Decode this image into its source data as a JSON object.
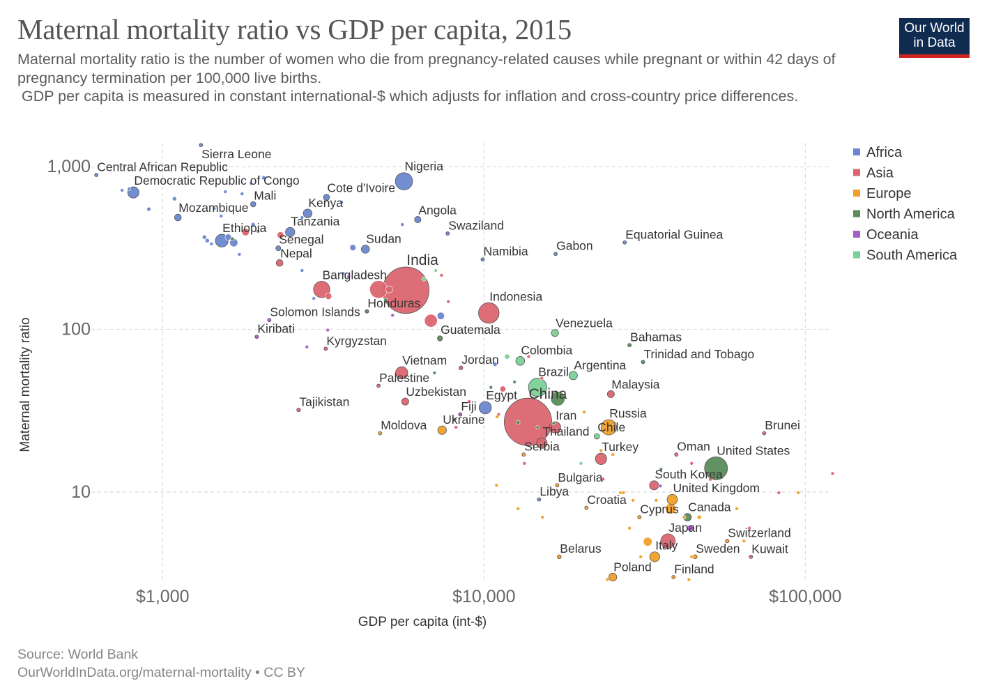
{
  "header": {
    "title": "Maternal mortality ratio vs GDP per capita, 2015",
    "subtitle": "Maternal mortality ratio is the number of women who die from pregnancy-related causes while pregnant or within 42 days of pregnancy termination per 100,000 live births.\n GDP per capita is measured in constant international-$ which adjusts for inflation and cross-country price differences.",
    "logo_line1": "Our World",
    "logo_line2": "in Data"
  },
  "footer": {
    "source": "Source: World Bank",
    "link": "OurWorldInData.org/maternal-mortality • CC BY"
  },
  "chart_data": {
    "type": "scatter",
    "title": "Maternal mortality ratio vs GDP per capita, 2015",
    "xlabel": "GDP per capita (int-$)",
    "ylabel": "Maternal mortality ratio",
    "xscale": "log",
    "yscale": "log",
    "xlim": [
      600,
      125000
    ],
    "ylim": [
      2.8,
      1400
    ],
    "xticks": [
      {
        "value": 1000,
        "label": "$1,000"
      },
      {
        "value": 10000,
        "label": "$10,000"
      },
      {
        "value": 100000,
        "label": "$100,000"
      }
    ],
    "yticks": [
      {
        "value": 10,
        "label": "10"
      },
      {
        "value": 100,
        "label": "100"
      },
      {
        "value": 1000,
        "label": "1,000"
      }
    ],
    "grid": true,
    "size_encoding": "population (millions)",
    "legend_position": "right",
    "legend": [
      {
        "name": "Africa",
        "color": "#6b87cf"
      },
      {
        "name": "Asia",
        "color": "#db6670"
      },
      {
        "name": "Europe",
        "color": "#f0a02a"
      },
      {
        "name": "North America",
        "color": "#5b8c5a"
      },
      {
        "name": "Oceania",
        "color": "#a65dc6"
      },
      {
        "name": "South America",
        "color": "#7ad196"
      }
    ],
    "points": [
      {
        "c": "Sierra Leone",
        "x": 1316,
        "y": 1358,
        "r": "Africa",
        "p": 7
      },
      {
        "c": "Central African Republic",
        "x": 622,
        "y": 889,
        "r": "Africa",
        "p": 4.5
      },
      {
        "c": "Democratic Republic of Congo",
        "x": 811,
        "y": 694,
        "r": "Africa",
        "p": 77
      },
      {
        "c": "Mali",
        "x": 1914,
        "y": 587,
        "r": "Africa",
        "p": 17
      },
      {
        "c": "Mozambique",
        "x": 1116,
        "y": 487,
        "r": "Africa",
        "p": 28
      },
      {
        "c": "Ethiopia",
        "x": 1528,
        "y": 351,
        "r": "Africa",
        "p": 100
      },
      {
        "c": "Kenya",
        "x": 2827,
        "y": 516,
        "r": "Africa",
        "p": 47
      },
      {
        "c": "Tanzania",
        "x": 2494,
        "y": 396,
        "r": "Africa",
        "p": 53
      },
      {
        "c": "Senegal",
        "x": 2291,
        "y": 315,
        "r": "Africa",
        "p": 15
      },
      {
        "c": "Nepal",
        "x": 2312,
        "y": 256,
        "r": "Asia",
        "p": 28
      },
      {
        "c": "Cote d'Ivoire",
        "x": 3236,
        "y": 648,
        "r": "Africa",
        "p": 23
      },
      {
        "c": "Nigeria",
        "x": 5636,
        "y": 813,
        "r": "Africa",
        "p": 181
      },
      {
        "c": "Angola",
        "x": 6223,
        "y": 473,
        "r": "Africa",
        "p": 25
      },
      {
        "c": "Sudan",
        "x": 4276,
        "y": 311,
        "r": "Africa",
        "p": 40
      },
      {
        "c": "Swaziland",
        "x": 7709,
        "y": 388,
        "r": "Africa",
        "p": 1.3
      },
      {
        "c": "Namibia",
        "x": 9908,
        "y": 269,
        "r": "Africa",
        "p": 2.4
      },
      {
        "c": "Gabon",
        "x": 16710,
        "y": 291,
        "r": "Africa",
        "p": 1.9
      },
      {
        "c": "Equatorial Guinea",
        "x": 27420,
        "y": 342,
        "r": "Africa",
        "p": 1.2
      },
      {
        "c": "India",
        "x": 5715,
        "y": 174,
        "r": "Asia",
        "p": 1311
      },
      {
        "c": "Bangladesh",
        "x": 3126,
        "y": 176,
        "r": "Asia",
        "p": 161
      },
      {
        "c": "Honduras",
        "x": 4323,
        "y": 129,
        "r": "North America",
        "p": 8
      },
      {
        "c": "Solomon Islands",
        "x": 2148,
        "y": 114,
        "r": "Oceania",
        "p": 0.6
      },
      {
        "c": "Kiribati",
        "x": 1963,
        "y": 90,
        "r": "Oceania",
        "p": 0.1
      },
      {
        "c": "Kyrgyzstan",
        "x": 3219,
        "y": 76,
        "r": "Asia",
        "p": 6
      },
      {
        "c": "Indonesia",
        "x": 10355,
        "y": 126,
        "r": "Asia",
        "p": 258
      },
      {
        "c": "Guatemala",
        "x": 7296,
        "y": 88,
        "r": "North America",
        "p": 16
      },
      {
        "c": "Venezuela",
        "x": 16634,
        "y": 95,
        "r": "South America",
        "p": 31
      },
      {
        "c": "Bahamas",
        "x": 28380,
        "y": 80,
        "r": "North America",
        "p": 0.4
      },
      {
        "c": "Trinidad and Tobago",
        "x": 31260,
        "y": 63,
        "r": "North America",
        "p": 1.4
      },
      {
        "c": "Colombia",
        "x": 12970,
        "y": 64,
        "r": "South America",
        "p": 48
      },
      {
        "c": "Jordan",
        "x": 8477,
        "y": 58,
        "r": "Asia",
        "p": 9
      },
      {
        "c": "Vietnam",
        "x": 5546,
        "y": 54,
        "r": "Asia",
        "p": 92
      },
      {
        "c": "Palestine",
        "x": 4699,
        "y": 45,
        "r": "Asia",
        "p": 4.7
      },
      {
        "c": "Argentina",
        "x": 18960,
        "y": 52,
        "r": "South America",
        "p": 43
      },
      {
        "c": "Brazil",
        "x": 14690,
        "y": 44,
        "r": "South America",
        "p": 206
      },
      {
        "c": "Malaysia",
        "x": 24830,
        "y": 40,
        "r": "Asia",
        "p": 30
      },
      {
        "c": "Uzbekistan",
        "x": 5689,
        "y": 36,
        "r": "Asia",
        "p": 31
      },
      {
        "c": "Egypt",
        "x": 10095,
        "y": 33,
        "r": "Africa",
        "p": 92
      },
      {
        "c": "China",
        "x": 13710,
        "y": 27,
        "r": "Asia",
        "p": 1371
      },
      {
        "c": "Tajikistan",
        "x": 2650,
        "y": 32,
        "r": "Asia",
        "p": 8.5
      },
      {
        "c": "Fiji",
        "x": 8439,
        "y": 30,
        "r": "Oceania",
        "p": 0.9
      },
      {
        "c": "Moldova",
        "x": 4750,
        "y": 23,
        "r": "Europe",
        "p": 3.5
      },
      {
        "c": "Ukraine",
        "x": 7410,
        "y": 24,
        "r": "Europe",
        "p": 45
      },
      {
        "c": "Iran",
        "x": 16640,
        "y": 25,
        "r": "Asia",
        "p": 79
      },
      {
        "c": "Thailand",
        "x": 15140,
        "y": 20,
        "r": "Asia",
        "p": 68
      },
      {
        "c": "Russia",
        "x": 24450,
        "y": 25,
        "r": "Europe",
        "p": 144
      },
      {
        "c": "Chile",
        "x": 22460,
        "y": 22,
        "r": "South America",
        "p": 18
      },
      {
        "c": "Serbia",
        "x": 13290,
        "y": 17,
        "r": "Europe",
        "p": 7
      },
      {
        "c": "Turkey",
        "x": 23140,
        "y": 16,
        "r": "Asia",
        "p": 78
      },
      {
        "c": "Brunei",
        "x": 74460,
        "y": 23,
        "r": "Asia",
        "p": 0.4
      },
      {
        "c": "Oman",
        "x": 39680,
        "y": 17,
        "r": "Asia",
        "p": 4.5
      },
      {
        "c": "United States",
        "x": 52740,
        "y": 14,
        "r": "North America",
        "p": 321
      },
      {
        "c": "South Korea",
        "x": 33840,
        "y": 11,
        "r": "Asia",
        "p": 51
      },
      {
        "c": "Bulgaria",
        "x": 16900,
        "y": 11,
        "r": "Europe",
        "p": 7
      },
      {
        "c": "United Kingdom",
        "x": 38550,
        "y": 9,
        "r": "Europe",
        "p": 65
      },
      {
        "c": "Libya",
        "x": 14840,
        "y": 9,
        "r": "Africa",
        "p": 6
      },
      {
        "c": "Croatia",
        "x": 20840,
        "y": 8,
        "r": "Europe",
        "p": 4.2
      },
      {
        "c": "Cyprus",
        "x": 30460,
        "y": 7,
        "r": "Europe",
        "p": 1.2
      },
      {
        "c": "Canada",
        "x": 42980,
        "y": 7,
        "r": "North America",
        "p": 36
      },
      {
        "c": "Japan",
        "x": 37390,
        "y": 5,
        "r": "Asia",
        "p": 127
      },
      {
        "c": "Switzerland",
        "x": 57150,
        "y": 5,
        "r": "Europe",
        "p": 8.3
      },
      {
        "c": "Belarus",
        "x": 17150,
        "y": 4,
        "r": "Europe",
        "p": 9.5
      },
      {
        "c": "Italy",
        "x": 33990,
        "y": 4,
        "r": "Europe",
        "p": 60
      },
      {
        "c": "Sweden",
        "x": 45420,
        "y": 4,
        "r": "Europe",
        "p": 9.8
      },
      {
        "c": "Kuwait",
        "x": 67720,
        "y": 4,
        "r": "Asia",
        "p": 3.9
      },
      {
        "c": "Poland",
        "x": 25180,
        "y": 3,
        "r": "Europe",
        "p": 38
      },
      {
        "c": "Finland",
        "x": 38900,
        "y": 3,
        "r": "Europe",
        "p": 5.5
      },
      {
        "x": 748,
        "y": 715,
        "r": "Africa",
        "p": 5
      },
      {
        "x": 787,
        "y": 730,
        "r": "Africa",
        "p": 3
      },
      {
        "x": 906,
        "y": 548,
        "r": "Africa",
        "p": 10
      },
      {
        "x": 1089,
        "y": 635,
        "r": "Africa",
        "p": 11
      },
      {
        "x": 1567,
        "y": 701,
        "r": "Africa",
        "p": 2
      },
      {
        "x": 1767,
        "y": 681,
        "r": "Africa",
        "p": 8
      },
      {
        "x": 2064,
        "y": 854,
        "r": "Africa",
        "p": 10
      },
      {
        "x": 1884,
        "y": 789,
        "r": "Africa",
        "p": 7
      },
      {
        "x": 1521,
        "y": 497,
        "r": "Africa",
        "p": 2
      },
      {
        "x": 1448,
        "y": 553,
        "r": "Africa",
        "p": 1.8
      },
      {
        "x": 1914,
        "y": 441,
        "r": "Africa",
        "p": 10
      },
      {
        "x": 1982,
        "y": 400,
        "r": "Africa",
        "p": 3
      },
      {
        "x": 1349,
        "y": 369,
        "r": "Africa",
        "p": 11
      },
      {
        "x": 1377,
        "y": 351,
        "r": "Africa",
        "p": 11
      },
      {
        "x": 1419,
        "y": 335,
        "r": "Africa",
        "p": 3
      },
      {
        "x": 1600,
        "y": 369,
        "r": "Africa",
        "p": 24
      },
      {
        "x": 1665,
        "y": 341,
        "r": "Africa",
        "p": 40
      },
      {
        "x": 1733,
        "y": 289,
        "r": "Africa",
        "p": 7
      },
      {
        "x": 1648,
        "y": 359,
        "r": "North America",
        "p": 10
      },
      {
        "x": 1811,
        "y": 396,
        "r": "Asia",
        "p": 33
      },
      {
        "x": 2327,
        "y": 380,
        "r": "Asia",
        "p": 27
      },
      {
        "x": 2716,
        "y": 487,
        "r": "Africa",
        "p": 2
      },
      {
        "x": 3606,
        "y": 605,
        "r": "Africa",
        "p": 7
      },
      {
        "x": 2716,
        "y": 230,
        "r": "Africa",
        "p": 2
      },
      {
        "x": 2955,
        "y": 155,
        "r": "Africa",
        "p": 1.8
      },
      {
        "x": 3648,
        "y": 221,
        "r": "Africa",
        "p": 7
      },
      {
        "x": 3793,
        "y": 211,
        "r": "Oceania",
        "p": 8
      },
      {
        "x": 3908,
        "y": 318,
        "r": "Africa",
        "p": 23
      },
      {
        "x": 5571,
        "y": 441,
        "r": "Africa",
        "p": 4.5
      },
      {
        "x": 3281,
        "y": 160,
        "r": "Asia",
        "p": 27
      },
      {
        "x": 4699,
        "y": 176,
        "r": "Asia",
        "p": 189
      },
      {
        "x": 5070,
        "y": 176,
        "r": "Asia",
        "p": 30
      },
      {
        "x": 6505,
        "y": 204,
        "r": "South America",
        "p": 11
      },
      {
        "x": 7079,
        "y": 230,
        "r": "South America",
        "p": 0.8
      },
      {
        "x": 7379,
        "y": 215,
        "r": "Asia",
        "p": 7
      },
      {
        "x": 7746,
        "y": 148,
        "r": "Asia",
        "p": 3
      },
      {
        "x": 6839,
        "y": 113,
        "r": "Asia",
        "p": 100
      },
      {
        "x": 7341,
        "y": 121,
        "r": "Africa",
        "p": 33
      },
      {
        "x": 4943,
        "y": 152,
        "r": "North America",
        "p": 6
      },
      {
        "x": 5196,
        "y": 122,
        "r": "Oceania",
        "p": 0.3
      },
      {
        "x": 3266,
        "y": 99,
        "r": "Oceania",
        "p": 0.2
      },
      {
        "x": 2812,
        "y": 78,
        "r": "Oceania",
        "p": 0.1
      },
      {
        "x": 11800,
        "y": 68,
        "r": "South America",
        "p": 16
      },
      {
        "x": 13770,
        "y": 68,
        "r": "Asia",
        "p": 6
      },
      {
        "x": 10830,
        "y": 61,
        "r": "Africa",
        "p": 11
      },
      {
        "x": 7015,
        "y": 54,
        "r": "North America",
        "p": 6
      },
      {
        "x": 15140,
        "y": 50,
        "r": "Asia",
        "p": 3
      },
      {
        "x": 10510,
        "y": 44,
        "r": "North America",
        "p": 0.8
      },
      {
        "x": 11450,
        "y": 43,
        "r": "Asia",
        "p": 21
      },
      {
        "x": 12450,
        "y": 47.5,
        "r": "North America",
        "p": 4
      },
      {
        "x": 8995,
        "y": 36,
        "r": "Asia",
        "p": 7
      },
      {
        "x": 11110,
        "y": 30,
        "r": "Asia",
        "p": 3
      },
      {
        "x": 10990,
        "y": 29,
        "r": "Europe",
        "p": 2.9
      },
      {
        "x": 8185,
        "y": 25,
        "r": "Asia",
        "p": 3
      },
      {
        "x": 8110,
        "y": 28,
        "r": "North America",
        "p": 2.7
      },
      {
        "x": 16980,
        "y": 37.5,
        "r": "North America",
        "p": 127
      },
      {
        "x": 20510,
        "y": 31,
        "r": "Europe",
        "p": 2.9
      },
      {
        "x": 16480,
        "y": 26.5,
        "r": "North America",
        "p": 4.8
      },
      {
        "x": 12770,
        "y": 26.8,
        "r": "North America",
        "p": 10
      },
      {
        "x": 14690,
        "y": 25,
        "r": "North America",
        "p": 3
      },
      {
        "x": 23140,
        "y": 18,
        "r": "Europe",
        "p": 3
      },
      {
        "x": 25180,
        "y": 17,
        "r": "Europe",
        "p": 2
      },
      {
        "x": 20040,
        "y": 15,
        "r": "South America",
        "p": 3.4
      },
      {
        "x": 13360,
        "y": 15,
        "r": "Asia",
        "p": 3
      },
      {
        "x": 23490,
        "y": 12,
        "r": "Asia",
        "p": 4
      },
      {
        "x": 10940,
        "y": 11,
        "r": "Europe",
        "p": 2
      },
      {
        "x": 26610,
        "y": 9.9,
        "r": "Europe",
        "p": 2
      },
      {
        "x": 27170,
        "y": 9.9,
        "r": "Europe",
        "p": 2
      },
      {
        "x": 29110,
        "y": 8.9,
        "r": "Europe",
        "p": 1.3
      },
      {
        "x": 34350,
        "y": 8.9,
        "r": "Europe",
        "p": 0.4
      },
      {
        "x": 12770,
        "y": 7.9,
        "r": "Europe",
        "p": 2
      },
      {
        "x": 15210,
        "y": 7.0,
        "r": "Europe",
        "p": 2.9
      },
      {
        "x": 35560,
        "y": 13.8,
        "r": "North America",
        "p": 0.3
      },
      {
        "x": 35400,
        "y": 10.9,
        "r": "Oceania",
        "p": 4.6
      },
      {
        "x": 44300,
        "y": 15,
        "r": "Asia",
        "p": 2
      },
      {
        "x": 50700,
        "y": 12,
        "r": "Asia",
        "p": 9
      },
      {
        "x": 82740,
        "y": 9.9,
        "r": "Asia",
        "p": 2
      },
      {
        "x": 95100,
        "y": 9.9,
        "r": "Europe",
        "p": 0.6
      },
      {
        "x": 121600,
        "y": 13,
        "r": "Asia",
        "p": 2.2
      },
      {
        "x": 61240,
        "y": 7.9,
        "r": "Europe",
        "p": 5
      },
      {
        "x": 38110,
        "y": 7.9,
        "r": "Europe",
        "p": 66
      },
      {
        "x": 41970,
        "y": 7.0,
        "r": "Europe",
        "p": 2
      },
      {
        "x": 46770,
        "y": 7.0,
        "r": "Europe",
        "p": 11
      },
      {
        "x": 28380,
        "y": 6.0,
        "r": "Europe",
        "p": 2
      },
      {
        "x": 43850,
        "y": 6.0,
        "r": "Oceania",
        "p": 24
      },
      {
        "x": 66990,
        "y": 6.0,
        "r": "Asia",
        "p": 2
      },
      {
        "x": 32330,
        "y": 4.95,
        "r": "Europe",
        "p": 46
      },
      {
        "x": 64420,
        "y": 5.0,
        "r": "Europe",
        "p": 2
      },
      {
        "x": 30760,
        "y": 4.0,
        "r": "Europe",
        "p": 2
      },
      {
        "x": 44300,
        "y": 4.0,
        "r": "Europe",
        "p": 5
      },
      {
        "x": 24210,
        "y": 2.9,
        "r": "Europe",
        "p": 2
      },
      {
        "x": 43450,
        "y": 2.9,
        "r": "Europe",
        "p": 0.5
      }
    ]
  }
}
